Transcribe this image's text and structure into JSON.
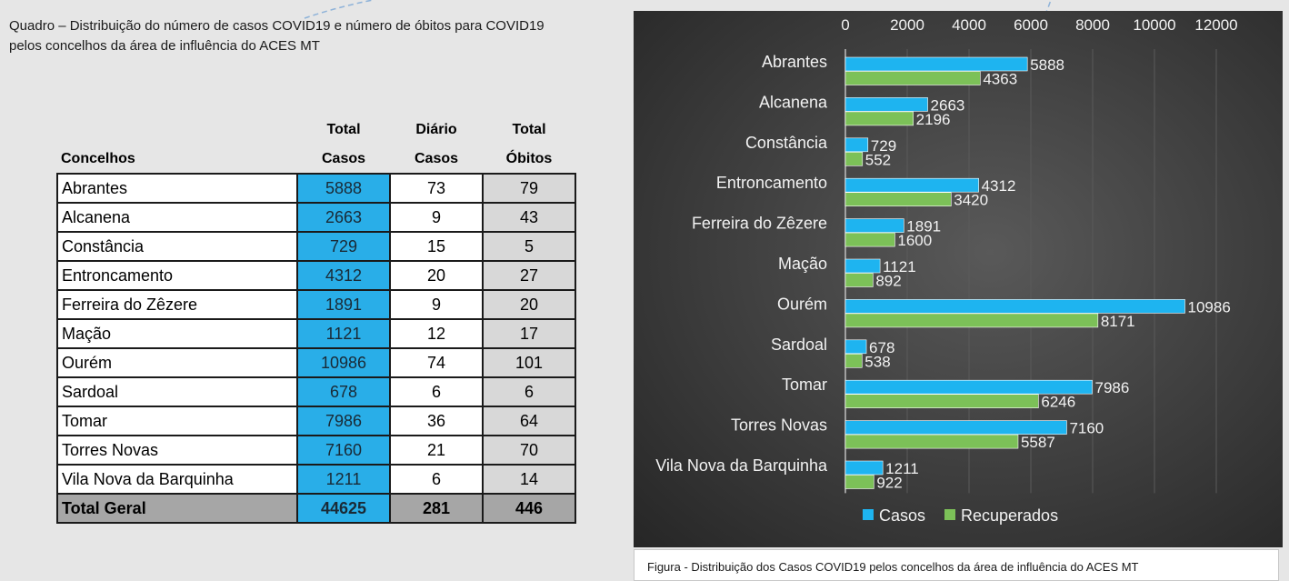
{
  "quadro_caption_line1": "Quadro – Distribuição do número de casos COVID19 e número de óbitos para COVID19",
  "quadro_caption_line2": "pelos concelhos da área de influência do ACES MT",
  "table": {
    "headers": {
      "concelhos": "Concelhos",
      "casos_line1": "Total",
      "casos_line2": "Casos",
      "diario_line1": "Diário",
      "diario_line2": "Casos",
      "obitos_line1": "Total",
      "obitos_line2": "Óbitos"
    },
    "rows": [
      {
        "concelho": "Abrantes",
        "casos": "5888",
        "diario": "73",
        "obitos": "79"
      },
      {
        "concelho": "Alcanena",
        "casos": "2663",
        "diario": "9",
        "obitos": "43"
      },
      {
        "concelho": "Constância",
        "casos": "729",
        "diario": "15",
        "obitos": "5"
      },
      {
        "concelho": "Entroncamento",
        "casos": "4312",
        "diario": "20",
        "obitos": "27"
      },
      {
        "concelho": "Ferreira do Zêzere",
        "casos": "1891",
        "diario": "9",
        "obitos": "20"
      },
      {
        "concelho": "Mação",
        "casos": "1121",
        "diario": "12",
        "obitos": "17"
      },
      {
        "concelho": "Ourém",
        "casos": "10986",
        "diario": "74",
        "obitos": "101"
      },
      {
        "concelho": "Sardoal",
        "casos": "678",
        "diario": "6",
        "obitos": "6"
      },
      {
        "concelho": "Tomar",
        "casos": "7986",
        "diario": "36",
        "obitos": "64"
      },
      {
        "concelho": "Torres Novas",
        "casos": "7160",
        "diario": "21",
        "obitos": "70"
      },
      {
        "concelho": "Vila Nova da Barquinha",
        "casos": "1211",
        "diario": "6",
        "obitos": "14"
      }
    ],
    "total": {
      "label": "Total Geral",
      "casos": "44625",
      "diario": "281",
      "obitos": "446"
    }
  },
  "chart_data": {
    "type": "bar",
    "orientation": "horizontal",
    "categories": [
      "Abrantes",
      "Alcanena",
      "Constância",
      "Entroncamento",
      "Ferreira do Zêzere",
      "Mação",
      "Ourém",
      "Sardoal",
      "Tomar",
      "Torres Novas",
      "Vila Nova da Barquinha"
    ],
    "series": [
      {
        "name": "Casos",
        "color": "#1eb4f0",
        "values": [
          5888,
          2663,
          729,
          4312,
          1891,
          1121,
          10986,
          678,
          7986,
          7160,
          1211
        ]
      },
      {
        "name": "Recuperados",
        "color": "#7cc158",
        "values": [
          4363,
          2196,
          552,
          3420,
          1600,
          892,
          8171,
          538,
          6246,
          5587,
          922
        ]
      }
    ],
    "xlim": [
      0,
      12000
    ],
    "xticks": [
      0,
      2000,
      4000,
      6000,
      8000,
      10000,
      12000
    ],
    "x_axis_position": "top",
    "grid": true,
    "legend_position": "bottom"
  },
  "figure_caption": "Figura -  Distribuição dos Casos COVID19 pelos concelhos da área de influência do ACES MT"
}
